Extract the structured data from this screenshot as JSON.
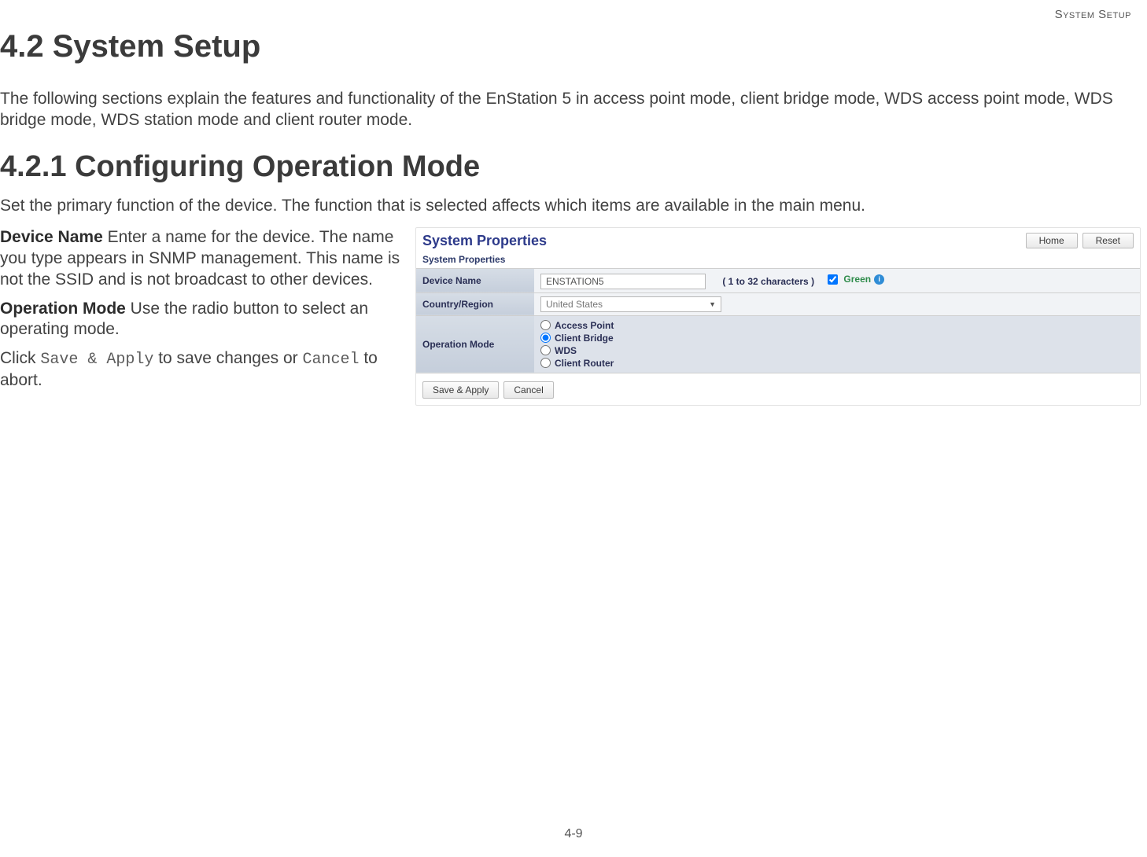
{
  "header": {
    "running_head": "System Setup"
  },
  "section": {
    "number_title": "4.2 System Setup",
    "intro": "The following sections explain the features and functionality of the EnStation 5 in access point mode, client bridge mode, WDS access point mode, WDS bridge mode, WDS station mode and client router mode."
  },
  "subsection": {
    "number_title": "4.2.1 Configuring Operation Mode",
    "lead": "Set the primary function of the device. The function that is selected affects which items are available in the main menu."
  },
  "descriptions": {
    "device_name_label": "Device Name",
    "device_name_text": "  Enter a name for the device. The name you type appears in SNMP management. This name is not the SSID and is not broadcast to other devices.",
    "operation_mode_label": "Operation Mode",
    "operation_mode_text": "  Use the radio button to select an operating mode.",
    "click_prefix": "Click ",
    "save_apply_mono": "Save & Apply",
    "click_mid": " to save changes or ",
    "cancel_mono": "Cancel",
    "click_suffix": " to abort."
  },
  "screenshot": {
    "panel_title": "System Properties",
    "top_buttons": {
      "home": "Home",
      "reset": "Reset"
    },
    "sub_heading": "System Properties",
    "rows": {
      "device_name": {
        "label": "Device Name",
        "value": "ENSTATION5",
        "char_note": "( 1 to 32 characters )",
        "green_label": "Green"
      },
      "country": {
        "label": "Country/Region",
        "value": "United States"
      },
      "operation_mode": {
        "label": "Operation Mode",
        "options": [
          "Access Point",
          "Client Bridge",
          "WDS",
          "Client Router"
        ],
        "selected_index": 1
      }
    },
    "actions": {
      "save_apply": "Save & Apply",
      "cancel": "Cancel"
    }
  },
  "footer": {
    "page_number": "4-9"
  }
}
